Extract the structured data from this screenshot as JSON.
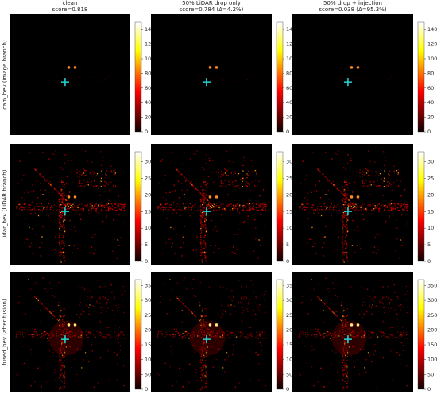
{
  "chart_data": [
    {
      "type": "heatmap",
      "title": "clean",
      "subtitle": "score=0.818",
      "ylabel": "cam_bev (image branch)",
      "colormap": "hot",
      "clim": [
        0,
        150
      ],
      "cticks": [
        0,
        20,
        40,
        60,
        80,
        100,
        120,
        140
      ]
    },
    {
      "type": "heatmap",
      "title": "50% LiDAR drop only",
      "subtitle": "score=0.784 (Δ=4.2%)",
      "colormap": "hot",
      "clim": [
        0,
        150
      ],
      "cticks": [
        0,
        20,
        40,
        60,
        80,
        100,
        120,
        140
      ]
    },
    {
      "type": "heatmap",
      "title": "50% drop + injection",
      "subtitle": "score=0.038 (Δ=95.3%)",
      "colormap": "hot",
      "clim": [
        0,
        150
      ],
      "cticks": [
        0,
        20,
        40,
        60,
        80,
        100,
        120,
        140
      ]
    },
    {
      "type": "heatmap",
      "ylabel": "lidar_bev (LiDAR branch)",
      "colormap": "hot",
      "clim": [
        0,
        33
      ],
      "cticks": [
        0,
        5,
        10,
        15,
        20,
        25,
        30
      ]
    },
    {
      "type": "heatmap",
      "colormap": "hot",
      "clim": [
        0,
        33
      ],
      "cticks": [
        0,
        5,
        10,
        15,
        20,
        25,
        30
      ]
    },
    {
      "type": "heatmap",
      "colormap": "hot",
      "clim": [
        0,
        33
      ],
      "cticks": [
        0,
        5,
        10,
        15,
        20,
        25,
        30
      ]
    },
    {
      "type": "heatmap",
      "ylabel": "fused_bev (after fusion)",
      "colormap": "hot",
      "clim": [
        0,
        370
      ],
      "cticks": [
        0,
        50,
        100,
        150,
        200,
        250,
        300,
        350
      ]
    },
    {
      "type": "heatmap",
      "colormap": "hot",
      "clim": [
        0,
        370
      ],
      "cticks": [
        0,
        50,
        100,
        150,
        200,
        250,
        300,
        350
      ]
    },
    {
      "type": "heatmap",
      "colormap": "hot",
      "clim": [
        0,
        370
      ],
      "cticks": [
        0,
        50,
        100,
        150,
        200,
        250,
        300,
        350
      ]
    }
  ]
}
